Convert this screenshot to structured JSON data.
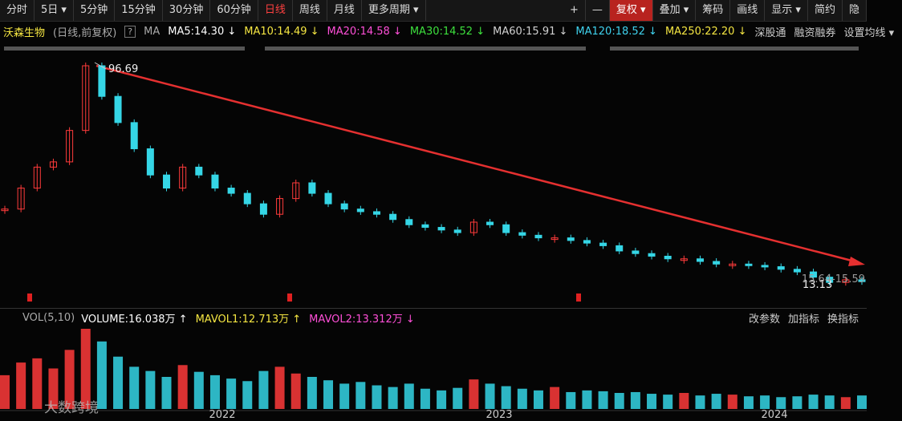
{
  "toolbar": {
    "periods": [
      {
        "label": "分时"
      },
      {
        "label": "5日 ▾"
      },
      {
        "label": "5分钟"
      },
      {
        "label": "15分钟"
      },
      {
        "label": "30分钟"
      },
      {
        "label": "60分钟"
      },
      {
        "label": "日线",
        "selected": true
      },
      {
        "label": "周线"
      },
      {
        "label": "月线"
      },
      {
        "label": "更多周期 ▾"
      }
    ],
    "tools": [
      {
        "label": "+"
      },
      {
        "label": "—"
      },
      {
        "label": "复权 ▾",
        "selected": true
      },
      {
        "label": "叠加 ▾"
      },
      {
        "label": "筹码"
      },
      {
        "label": "画线"
      },
      {
        "label": "显示 ▾"
      },
      {
        "label": "简约"
      },
      {
        "label": "隐"
      }
    ]
  },
  "info_bar": {
    "stock": "沃森生物",
    "mode": "(日线,前复权)",
    "help": "?",
    "ma": "MA",
    "ma_items": [
      {
        "label": "MA5:14.30 ↓",
        "color": "#ffffff"
      },
      {
        "label": "MA10:14.49 ↓",
        "color": "#f5e642"
      },
      {
        "label": "MA20:14.58 ↓",
        "color": "#ff4fd8"
      },
      {
        "label": "MA30:14.52 ↓",
        "color": "#3de03d"
      },
      {
        "label": "MA60:15.91 ↓",
        "color": "#d0d0d0"
      },
      {
        "label": "MA120:18.52 ↓",
        "color": "#3fd2ee"
      },
      {
        "label": "MA250:22.20 ↓",
        "color": "#f5e642"
      }
    ],
    "links": [
      "深股通",
      "融资融券",
      "设置均线 ▾"
    ]
  },
  "price_chart": {
    "high": {
      "value": 96.69,
      "label": "96.69"
    },
    "low": {
      "value": 13.13,
      "label": "13.13"
    },
    "range_note": "15.64-15.59",
    "up_color": "#ff3b3b",
    "down_color": "#35d6e6",
    "closes": [
      42,
      50,
      58,
      60,
      72,
      96.69,
      85,
      75,
      65,
      55,
      50,
      58,
      55,
      50,
      48,
      44,
      40,
      46,
      52,
      48,
      44,
      42,
      41,
      40,
      38,
      36,
      35,
      34,
      33,
      37,
      36,
      33,
      32,
      31,
      31,
      30,
      29,
      28,
      26,
      25,
      24,
      23,
      23,
      22,
      21,
      21,
      20.5,
      20,
      19,
      18,
      16,
      14,
      15,
      14.3
    ],
    "volumes": [
      40,
      55,
      60,
      48,
      70,
      95,
      80,
      62,
      50,
      45,
      38,
      52,
      44,
      40,
      36,
      33,
      45,
      50,
      42,
      38,
      34,
      30,
      32,
      28,
      26,
      30,
      24,
      22,
      25,
      35,
      30,
      27,
      24,
      22,
      26,
      20,
      22,
      21,
      19,
      20,
      18,
      17,
      19,
      16,
      18,
      17,
      15,
      16,
      14,
      15,
      17,
      16,
      14,
      16
    ]
  },
  "volume_bar": {
    "title": "VOL(5,10)",
    "items": [
      {
        "label": "VOLUME:16.038万 ↑",
        "color": "#ffffff"
      },
      {
        "label": "MAVOL1:12.713万 ↑",
        "color": "#f5e642"
      },
      {
        "label": "MAVOL2:13.312万 ↓",
        "color": "#ff4fd8"
      }
    ],
    "actions": [
      "改参数",
      "加指标",
      "换指标"
    ]
  },
  "x_axis": {
    "labels": [
      {
        "label": "2022"
      },
      {
        "label": "2023"
      },
      {
        "label": "2024"
      }
    ]
  },
  "watermark": "大数跨境"
}
